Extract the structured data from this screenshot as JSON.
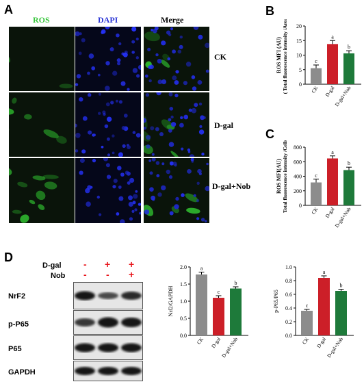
{
  "panels": {
    "A": "A",
    "B": "B",
    "C": "C",
    "D": "D"
  },
  "microscopy": {
    "columns": [
      "ROS",
      "DAPI",
      "Merge"
    ],
    "rows": [
      "CK",
      "D-gal",
      "D-gal+Nob"
    ],
    "colors": {
      "ros": "#39c63d",
      "dapi": "#3a45ff",
      "merge": "#ffffff"
    }
  },
  "western": {
    "treat_labels": [
      "D-gal",
      "Nob"
    ],
    "dgal_signs": [
      "-",
      "+",
      "+"
    ],
    "nob_signs": [
      "-",
      "-",
      "+"
    ],
    "blots": [
      "NrF2",
      "p-P65",
      "P65",
      "GAPDH"
    ]
  },
  "colors": {
    "ck": "#8c8c8c",
    "dgal": "#cc1f28",
    "nob": "#1e7a3a"
  },
  "chart_data": [
    {
      "id": "B",
      "type": "bar",
      "categories": [
        "CK",
        "D-gal",
        "D-gal+Nob"
      ],
      "values": [
        5.5,
        13.8,
        10.6
      ],
      "errors": [
        1.1,
        1.2,
        0.9
      ],
      "letters": [
        "c",
        "a",
        "b"
      ],
      "ylabel": "ROS MFI (AU)",
      "ylabel2": "( Total fluorescence intensity /Area)",
      "ylim": [
        0,
        20
      ],
      "yticks": [
        "0",
        "5",
        "10",
        "15",
        "20"
      ]
    },
    {
      "id": "C",
      "type": "bar",
      "categories": [
        "CK",
        "D-gal",
        "D-gal+Nob"
      ],
      "values": [
        315,
        645,
        485
      ],
      "errors": [
        45,
        35,
        40
      ],
      "letters": [
        "c",
        "a",
        "b"
      ],
      "ylabel": "ROS MFI(AU)",
      "ylabel2": "Total fluorescence intensity /Cells",
      "ylim": [
        0,
        800
      ],
      "yticks": [
        "0",
        "200",
        "400",
        "600",
        "800"
      ]
    },
    {
      "id": "D1",
      "type": "bar",
      "categories": [
        "CK",
        "D-gal",
        "D-gal+Nob"
      ],
      "values": [
        1.78,
        1.1,
        1.37
      ],
      "errors": [
        0.07,
        0.06,
        0.05
      ],
      "letters": [
        "a",
        "c",
        "b"
      ],
      "ylabel": "Nrf2/GAPDH",
      "ylim": [
        0,
        2.0
      ],
      "yticks": [
        "0.0",
        "0.5",
        "1.0",
        "1.5",
        "2.0"
      ]
    },
    {
      "id": "D2",
      "type": "bar",
      "categories": [
        "CK",
        "D-gal",
        "D-gal+Nob"
      ],
      "values": [
        0.36,
        0.84,
        0.65
      ],
      "errors": [
        0.02,
        0.03,
        0.025
      ],
      "letters": [
        "c",
        "a",
        "b"
      ],
      "ylabel": "p-P65/P65",
      "ylim": [
        0,
        1.0
      ],
      "yticks": [
        "0.0",
        "0.2",
        "0.4",
        "0.6",
        "0.8",
        "1.0"
      ]
    }
  ]
}
